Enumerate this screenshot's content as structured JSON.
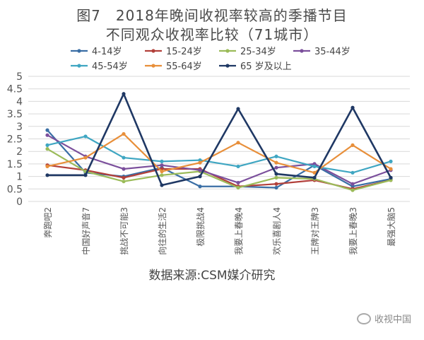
{
  "title_line1": "图7　2018年晚间收视率较高的季播节目",
  "title_line2": "不同观众收视率比较（71城市）",
  "source": "数据来源:CSM媒介研究",
  "watermark": "收视中国",
  "chart_data": {
    "type": "line",
    "categories": [
      "奔跑吧2",
      "中国好声音7",
      "挑战不可能3",
      "向往的生活2",
      "极限挑战4",
      "我要上春晚4",
      "欢乐喜剧人4",
      "王牌对王牌3",
      "我要上春晚3",
      "最强大脑5"
    ],
    "ylim": [
      0,
      5
    ],
    "yticks": [
      0,
      0.5,
      1,
      1.5,
      2,
      2.5,
      3,
      3.5,
      4,
      4.5,
      5
    ],
    "ytick_labels": [
      "0",
      "0.5",
      "1",
      "1.5",
      "2",
      "2.5",
      "3",
      "3.5",
      "4",
      "4.5",
      "5"
    ],
    "grid": true,
    "legend_position": "top",
    "series": [
      {
        "name": "4-14岁",
        "color": "#3a6ea5",
        "values": [
          2.85,
          1.15,
          1.0,
          1.35,
          0.6,
          0.6,
          0.55,
          1.45,
          0.6,
          0.9
        ]
      },
      {
        "name": "15-24岁",
        "color": "#b2403a",
        "values": [
          1.45,
          1.25,
          0.95,
          1.3,
          1.3,
          0.6,
          0.7,
          0.85,
          0.5,
          0.85
        ]
      },
      {
        "name": "25-34岁",
        "color": "#9bbb59",
        "values": [
          2.1,
          1.2,
          0.8,
          1.05,
          1.2,
          0.55,
          0.95,
          0.9,
          0.45,
          0.85
        ]
      },
      {
        "name": "35-44岁",
        "color": "#7b4f9c",
        "values": [
          2.65,
          1.8,
          1.3,
          1.45,
          1.25,
          0.75,
          1.35,
          1.5,
          0.7,
          1.25
        ]
      },
      {
        "name": "45-54岁",
        "color": "#3fa6c2",
        "values": [
          2.25,
          2.6,
          1.75,
          1.6,
          1.65,
          1.4,
          1.8,
          1.4,
          1.15,
          1.6
        ]
      },
      {
        "name": "55-64岁",
        "color": "#e88f3a",
        "values": [
          1.4,
          1.75,
          2.7,
          1.2,
          1.55,
          2.35,
          1.55,
          1.15,
          2.25,
          1.3
        ]
      },
      {
        "name": "65 岁及以上",
        "color": "#1f3864",
        "values": [
          1.05,
          1.05,
          4.3,
          0.65,
          1.0,
          3.7,
          1.1,
          0.95,
          3.75,
          0.95
        ]
      }
    ]
  }
}
